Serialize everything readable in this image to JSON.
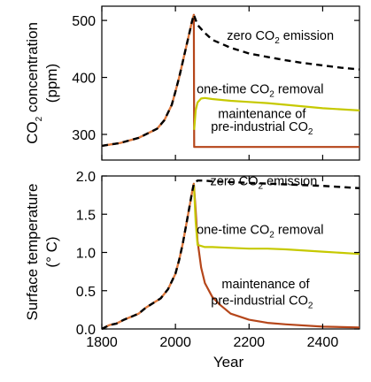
{
  "colors": {
    "zero_emission": "#000000",
    "one_time_removal": "#c6c900",
    "preindustrial": "#b5461a",
    "observed": "#e07a3c"
  },
  "chart_data": [
    {
      "type": "line",
      "ylabel_line1": "CO",
      "ylabel_sub": "2",
      "ylabel_after": " concentration",
      "ylabel_line2": "(ppm)",
      "xlim": [
        1800,
        2500
      ],
      "ylim": [
        255,
        525
      ],
      "yticks": [
        300,
        400,
        500
      ],
      "yticklabels": [
        "300",
        "400",
        "500"
      ],
      "annotations": [
        {
          "pre": "zero CO",
          "sub": "2",
          "post": " emission",
          "x": 2285,
          "y": 466,
          "fs": 14.5
        },
        {
          "pre": "one-time CO",
          "sub": "2",
          "post": " removal",
          "x": 2230,
          "y": 372,
          "fs": 14
        },
        {
          "pre": "maintenance of",
          "sub": "",
          "post": "",
          "x": 2235,
          "y": 329,
          "fs": 14
        },
        {
          "pre": "pre-industrial CO",
          "sub": "2",
          "post": "",
          "x": 2235,
          "y": 306,
          "fs": 14
        }
      ],
      "series": [
        {
          "key": "observed",
          "dash": false,
          "x": [
            1800,
            1850,
            1900,
            1950,
            1970,
            1990,
            2000,
            2010,
            2020,
            2030,
            2040,
            2045,
            2050
          ],
          "y": [
            280,
            285,
            294,
            310,
            325,
            352,
            375,
            400,
            428,
            456,
            484,
            498,
            510
          ]
        },
        {
          "key": "preindustrial",
          "dash": false,
          "x": [
            1800,
            1850,
            1900,
            1950,
            1970,
            1990,
            2000,
            2010,
            2020,
            2030,
            2040,
            2045,
            2050,
            2051,
            2500
          ],
          "y": [
            280,
            285,
            294,
            310,
            325,
            352,
            375,
            400,
            428,
            456,
            484,
            498,
            510,
            278,
            278
          ]
        },
        {
          "key": "one_time_removal",
          "dash": false,
          "x": [
            2051,
            2055,
            2060,
            2070,
            2080,
            2100,
            2150,
            2200,
            2250,
            2300,
            2400,
            2500
          ],
          "y": [
            308,
            342,
            356,
            363,
            364,
            362,
            359,
            357,
            355,
            352,
            346,
            342
          ]
        },
        {
          "key": "zero_emission",
          "dash": true,
          "x": [
            1800,
            1850,
            1900,
            1950,
            1970,
            1990,
            2000,
            2010,
            2020,
            2030,
            2040,
            2045,
            2050,
            2060,
            2080,
            2100,
            2150,
            2200,
            2250,
            2300,
            2350,
            2400,
            2450,
            2500
          ],
          "y": [
            280,
            285,
            294,
            310,
            325,
            352,
            375,
            400,
            428,
            456,
            484,
            498,
            510,
            492,
            478,
            466,
            452,
            442,
            436,
            430,
            425,
            421,
            417,
            414
          ]
        }
      ]
    },
    {
      "type": "line",
      "ylabel_line1": "Surface temperature",
      "ylabel_line2": "(° C)",
      "xlabel": "Year",
      "xlim": [
        1800,
        2500
      ],
      "ylim": [
        0,
        2.0
      ],
      "yticks": [
        0,
        0.5,
        1.0,
        1.5,
        2.0
      ],
      "yticklabels": [
        "0.0",
        "0.5",
        "1.0",
        "1.5",
        "2.0"
      ],
      "xticks": [
        1800,
        2000,
        2200,
        2400
      ],
      "xticklabels": [
        "1800",
        "2000",
        "2200",
        "2400"
      ],
      "annotations": [
        {
          "pre": "zero CO",
          "sub": "2",
          "post": " emission",
          "x": 2240,
          "y": 1.88,
          "fs": 14.5
        },
        {
          "pre": "one-time CO",
          "sub": "2",
          "post": " removal",
          "x": 2230,
          "y": 1.24,
          "fs": 14
        },
        {
          "pre": "maintenance of",
          "sub": "",
          "post": "",
          "x": 2245,
          "y": 0.53,
          "fs": 14
        },
        {
          "pre": "pre-industrial CO",
          "sub": "2",
          "post": "",
          "x": 2235,
          "y": 0.32,
          "fs": 14
        }
      ],
      "series": [
        {
          "key": "observed",
          "dash": false,
          "x": [
            1800,
            1820,
            1840,
            1860,
            1880,
            1900,
            1920,
            1940,
            1960,
            1980,
            2000,
            2010,
            2020,
            2030,
            2040,
            2045,
            2050
          ],
          "y": [
            0.0,
            0.05,
            0.07,
            0.12,
            0.16,
            0.2,
            0.28,
            0.34,
            0.4,
            0.52,
            0.72,
            0.9,
            1.12,
            1.38,
            1.65,
            1.78,
            1.9
          ]
        },
        {
          "key": "preindustrial",
          "dash": false,
          "x": [
            1800,
            1820,
            1840,
            1860,
            1880,
            1900,
            1920,
            1940,
            1960,
            1980,
            2000,
            2010,
            2020,
            2030,
            2040,
            2045,
            2050,
            2055,
            2060,
            2070,
            2080,
            2100,
            2120,
            2150,
            2200,
            2250,
            2300,
            2400,
            2500
          ],
          "y": [
            0.0,
            0.05,
            0.07,
            0.12,
            0.16,
            0.2,
            0.28,
            0.34,
            0.4,
            0.52,
            0.72,
            0.9,
            1.12,
            1.38,
            1.65,
            1.78,
            1.9,
            1.55,
            1.15,
            0.8,
            0.6,
            0.42,
            0.32,
            0.2,
            0.12,
            0.08,
            0.06,
            0.03,
            0.02
          ]
        },
        {
          "key": "one_time_removal",
          "dash": false,
          "x": [
            2050,
            2055,
            2060,
            2080,
            2100,
            2150,
            2200,
            2250,
            2300,
            2400,
            2500
          ],
          "y": [
            1.9,
            1.4,
            1.1,
            1.07,
            1.07,
            1.06,
            1.05,
            1.05,
            1.04,
            1.01,
            0.98
          ]
        },
        {
          "key": "zero_emission",
          "dash": true,
          "x": [
            1800,
            1820,
            1840,
            1860,
            1880,
            1900,
            1920,
            1940,
            1960,
            1980,
            2000,
            2010,
            2020,
            2030,
            2040,
            2045,
            2050,
            2060,
            2080,
            2100,
            2150,
            2200,
            2250,
            2300,
            2400,
            2500
          ],
          "y": [
            0.0,
            0.05,
            0.07,
            0.12,
            0.16,
            0.2,
            0.28,
            0.34,
            0.4,
            0.52,
            0.72,
            0.9,
            1.12,
            1.38,
            1.65,
            1.78,
            1.9,
            1.94,
            1.94,
            1.93,
            1.92,
            1.91,
            1.9,
            1.89,
            1.87,
            1.84
          ]
        }
      ]
    }
  ]
}
